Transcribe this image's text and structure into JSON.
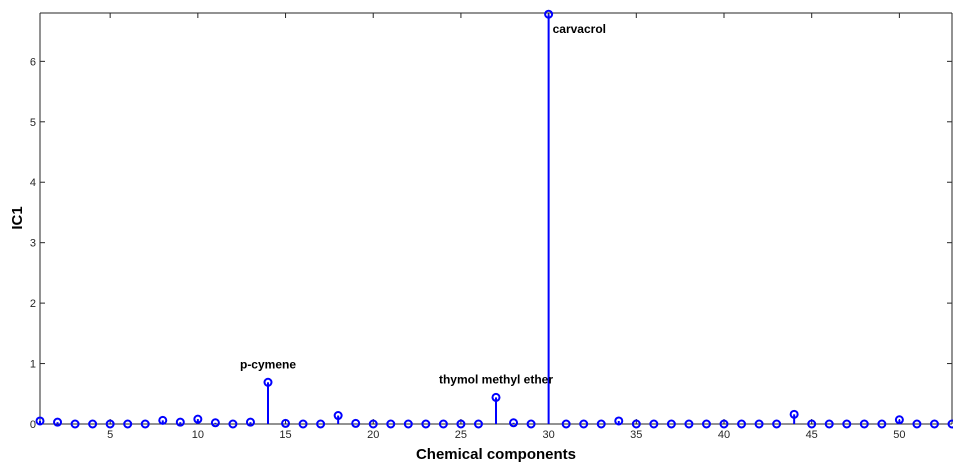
{
  "chart_data": {
    "type": "stem",
    "xlabel": "Chemical components",
    "ylabel": "IC1",
    "xlim": [
      1,
      53
    ],
    "ylim": [
      0,
      6.8
    ],
    "xticks": [
      5,
      10,
      15,
      20,
      25,
      30,
      35,
      40,
      45,
      50
    ],
    "yticks": [
      0,
      1,
      2,
      3,
      4,
      5,
      6
    ],
    "grid": false,
    "color": "#0000ff",
    "x": [
      1,
      2,
      3,
      4,
      5,
      6,
      7,
      8,
      9,
      10,
      11,
      12,
      13,
      14,
      15,
      16,
      17,
      18,
      19,
      20,
      21,
      22,
      23,
      24,
      25,
      26,
      27,
      28,
      29,
      30,
      31,
      32,
      33,
      34,
      35,
      36,
      37,
      38,
      39,
      40,
      41,
      42,
      43,
      44,
      45,
      46,
      47,
      48,
      49,
      50,
      51,
      52,
      53
    ],
    "values": [
      0.05,
      0.03,
      0.0,
      0.0,
      0.0,
      0.0,
      0.0,
      0.06,
      0.03,
      0.08,
      0.02,
      0.0,
      0.03,
      0.69,
      0.01,
      0.0,
      0.0,
      0.14,
      0.01,
      0.0,
      0.0,
      0.0,
      0.0,
      0.0,
      0.0,
      0.0,
      0.44,
      0.02,
      0.0,
      6.78,
      0.0,
      0.0,
      0.0,
      0.05,
      0.0,
      0.0,
      0.0,
      0.0,
      0.0,
      0.0,
      0.0,
      0.0,
      0.0,
      0.16,
      0.0,
      0.0,
      0.0,
      0.0,
      0.0,
      0.07,
      0.0,
      0.0,
      0.0
    ],
    "annotations": [
      {
        "text": "carvacrol",
        "x": 30,
        "y": 6.78
      },
      {
        "text": "p-cymene",
        "x": 14,
        "y": 0.69
      },
      {
        "text": "thymol methyl ether",
        "x": 27,
        "y": 0.44
      }
    ]
  }
}
